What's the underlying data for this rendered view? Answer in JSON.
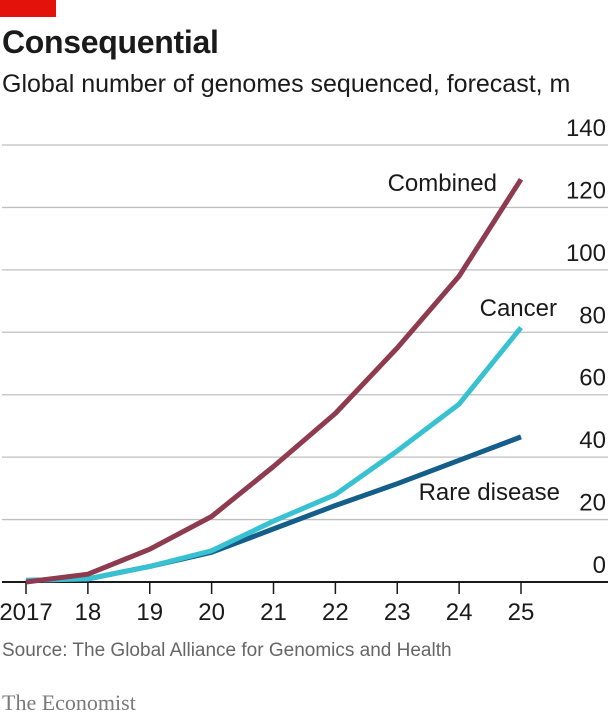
{
  "header": {
    "title": "Consequential",
    "subtitle": "Global number of genomes sequenced, forecast, m"
  },
  "footer": {
    "source": "Source: The Global Alliance for Genomics and Health",
    "brand": "The Economist"
  },
  "colors": {
    "brand_tag": "#e3120b",
    "combined": "#8e3a4f",
    "cancer": "#37c1d1",
    "rare_disease": "#145e8a",
    "gridline": "#bfbfbf",
    "baseline": "#1a1a1a"
  },
  "chart_data": {
    "type": "line",
    "x": [
      2017,
      2018,
      2019,
      2020,
      2021,
      2022,
      2023,
      2024,
      2025
    ],
    "x_tick_labels": [
      "2017",
      "18",
      "19",
      "20",
      "21",
      "22",
      "23",
      "24",
      "25"
    ],
    "y_ticks": [
      0,
      20,
      40,
      60,
      80,
      100,
      120,
      140
    ],
    "ylim": [
      0,
      140
    ],
    "y_axis_side": "right",
    "grid": true,
    "series": [
      {
        "name": "Combined",
        "color": "#8e3a4f",
        "values": [
          0,
          2.5,
          10.5,
          21,
          37,
          54,
          75,
          98,
          129
        ]
      },
      {
        "name": "Cancer",
        "color": "#37c1d1",
        "values": [
          0.5,
          1,
          5,
          10,
          19.5,
          28,
          42,
          57,
          81.5
        ]
      },
      {
        "name": "Rare disease",
        "color": "#145e8a",
        "values": [
          0.5,
          1,
          5,
          9.5,
          17,
          24.5,
          31.5,
          39,
          46.5
        ]
      }
    ]
  }
}
